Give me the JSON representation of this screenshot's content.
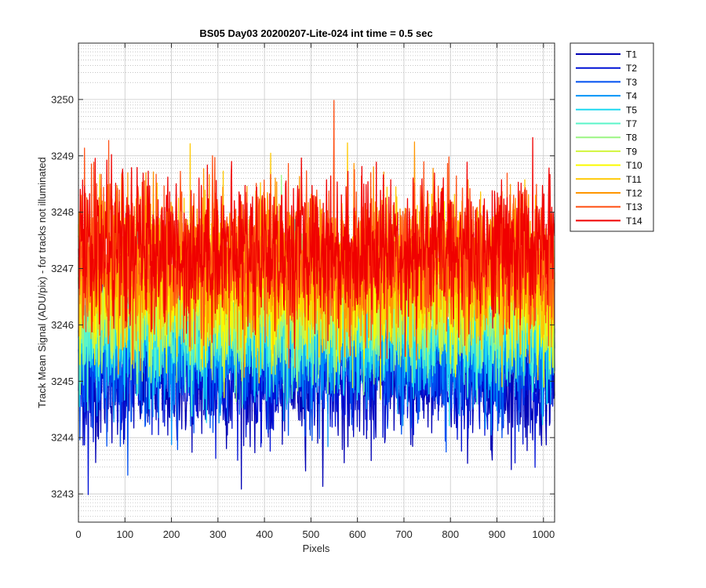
{
  "chart_data": {
    "type": "line",
    "title": "BS05 Day03 20200207-Lite-024 int time = 0.5 sec",
    "xlabel": "Pixels",
    "ylabel": "Track Mean Signal (ADU/pix) - for tracks not illuminated",
    "xlim": [
      0,
      1024
    ],
    "ylim": [
      3242.5,
      3251
    ],
    "xticks": [
      0,
      100,
      200,
      300,
      400,
      500,
      600,
      700,
      800,
      900,
      1000
    ],
    "yticks": [
      3243,
      3244,
      3245,
      3246,
      3247,
      3248,
      3249,
      3250
    ],
    "grid": true,
    "minor_grid": true,
    "legend_position": "outside-top-right",
    "n_points": 1024,
    "series": [
      {
        "name": "T1",
        "color": "#0000b4",
        "mean": 3245.0,
        "spread": 0.55
      },
      {
        "name": "T2",
        "color": "#0012d6",
        "mean": 3245.2,
        "spread": 0.55
      },
      {
        "name": "T3",
        "color": "#0050f0",
        "mean": 3245.4,
        "spread": 0.55
      },
      {
        "name": "T4",
        "color": "#0094f8",
        "mean": 3245.7,
        "spread": 0.55
      },
      {
        "name": "T5",
        "color": "#1ed8f0",
        "mean": 3245.9,
        "spread": 0.55
      },
      {
        "name": "T7",
        "color": "#5af5c8",
        "mean": 3246.1,
        "spread": 0.55
      },
      {
        "name": "T8",
        "color": "#9af582",
        "mean": 3246.3,
        "spread": 0.55
      },
      {
        "name": "T9",
        "color": "#d2f53c",
        "mean": 3246.5,
        "spread": 0.55
      },
      {
        "name": "T10",
        "color": "#fafa00",
        "mean": 3246.7,
        "spread": 0.6
      },
      {
        "name": "T11",
        "color": "#ffc800",
        "mean": 3246.9,
        "spread": 0.65
      },
      {
        "name": "T12",
        "color": "#ff9600",
        "mean": 3247.1,
        "spread": 0.65
      },
      {
        "name": "T13",
        "color": "#ff5014",
        "mean": 3247.2,
        "spread": 0.65
      },
      {
        "name": "T14",
        "color": "#f00000",
        "mean": 3247.35,
        "spread": 0.65
      }
    ]
  }
}
